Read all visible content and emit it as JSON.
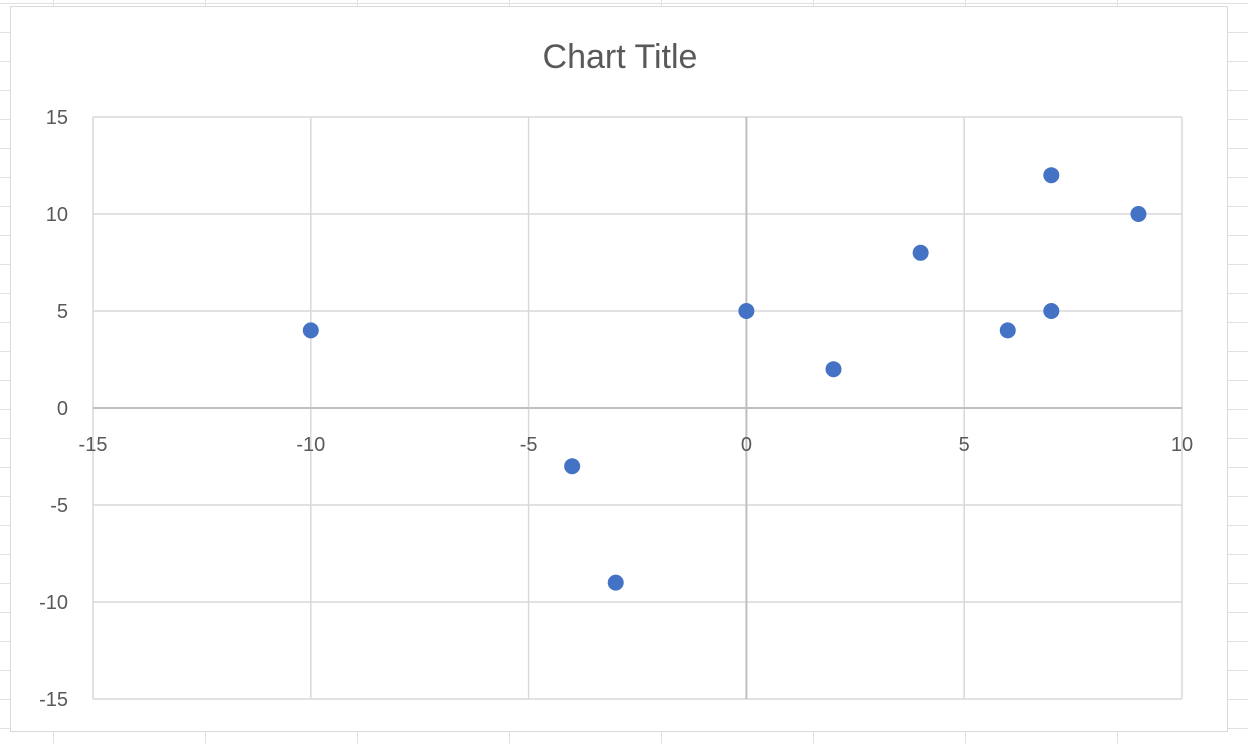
{
  "chart_data": {
    "type": "scatter",
    "title": "Chart Title",
    "xlabel": "",
    "ylabel": "",
    "xlim": [
      -15,
      10
    ],
    "ylim": [
      -15,
      15
    ],
    "x_ticks": [
      -15,
      -10,
      -5,
      0,
      5,
      10
    ],
    "y_ticks": [
      -15,
      -10,
      -5,
      0,
      5,
      10,
      15
    ],
    "x_tick_labels": [
      "-15",
      "-10",
      "-5",
      "0",
      "5",
      "10"
    ],
    "y_tick_labels": [
      "-15",
      "-10",
      "-5",
      "0",
      "5",
      "10",
      "15"
    ],
    "grid": true,
    "legend": "none",
    "marker_color": "#4472C4",
    "series": [
      {
        "points": [
          {
            "x": -10,
            "y": 4
          },
          {
            "x": -4,
            "y": -3
          },
          {
            "x": -3,
            "y": -9
          },
          {
            "x": 0,
            "y": 5
          },
          {
            "x": 2,
            "y": 2
          },
          {
            "x": 4,
            "y": 8
          },
          {
            "x": 6,
            "y": 4
          },
          {
            "x": 7,
            "y": 12
          },
          {
            "x": 7,
            "y": 5
          },
          {
            "x": 9,
            "y": 10
          }
        ]
      }
    ]
  }
}
